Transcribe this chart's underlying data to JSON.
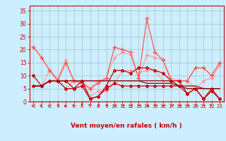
{
  "x": [
    0,
    1,
    2,
    3,
    4,
    5,
    6,
    7,
    8,
    9,
    10,
    11,
    12,
    13,
    14,
    15,
    16,
    17,
    18,
    19,
    20,
    21,
    22,
    23
  ],
  "background_color": "#cceeff",
  "grid_color": "#aacccc",
  "series": [
    {
      "name": "rafales_light1",
      "color": "#ff9999",
      "lw": 0.8,
      "marker": "D",
      "ms": 1.8,
      "y": [
        21,
        17,
        12,
        9,
        16,
        8,
        8,
        5,
        8,
        9,
        17,
        19,
        18,
        9,
        18,
        17,
        16,
        9,
        8,
        8,
        13,
        13,
        10,
        15
      ]
    },
    {
      "name": "moyen_light1",
      "color": "#ff9999",
      "lw": 0.8,
      "marker": "D",
      "ms": 1.8,
      "y": [
        6,
        6,
        12,
        8,
        5,
        8,
        8,
        2,
        4,
        4,
        7,
        12,
        12,
        11,
        12,
        12,
        8,
        8,
        8,
        8,
        5,
        8,
        9,
        14
      ]
    },
    {
      "name": "rafales_pink",
      "color": "#ff5555",
      "lw": 0.9,
      "marker": "+",
      "ms": 4,
      "y": [
        21,
        17,
        12,
        8,
        15,
        8,
        7,
        5,
        7,
        9,
        21,
        20,
        19,
        9,
        32,
        19,
        16,
        8,
        8,
        8,
        13,
        13,
        10,
        15
      ]
    },
    {
      "name": "vent_moyen_dark1",
      "color": "#cc0000",
      "lw": 0.9,
      "marker": "D",
      "ms": 2.0,
      "y": [
        10,
        6,
        8,
        8,
        8,
        5,
        8,
        1,
        2,
        6,
        12,
        12,
        11,
        13,
        13,
        12,
        11,
        8,
        8,
        3,
        5,
        1,
        4,
        1
      ]
    },
    {
      "name": "vent_moyen_dark2",
      "color": "#cc0000",
      "lw": 0.9,
      "marker": "D",
      "ms": 2.0,
      "y": [
        6,
        6,
        8,
        8,
        5,
        5,
        6,
        1,
        2,
        5,
        7,
        6,
        6,
        6,
        6,
        6,
        6,
        6,
        6,
        3,
        5,
        1,
        5,
        1
      ]
    },
    {
      "name": "vent_moyen_flat1",
      "color": "#990000",
      "lw": 0.9,
      "marker": null,
      "ms": 0,
      "y": [
        6,
        6,
        8,
        8,
        8,
        8,
        8,
        8,
        8,
        8,
        8,
        8,
        8,
        8,
        8,
        8,
        8,
        8,
        6,
        6,
        6,
        5,
        5,
        5
      ]
    },
    {
      "name": "vent_moyen_flat2",
      "color": "#990000",
      "lw": 0.9,
      "marker": null,
      "ms": 0,
      "y": [
        6,
        6,
        8,
        8,
        8,
        8,
        8,
        8,
        8,
        8,
        8,
        8,
        8,
        8,
        7,
        7,
        7,
        7,
        6,
        5,
        5,
        5,
        5,
        5
      ]
    }
  ],
  "xlabel": "Vent moyen/en rafales ( km/h )",
  "xlim": [
    -0.5,
    23.5
  ],
  "ylim": [
    0,
    37
  ],
  "yticks": [
    0,
    5,
    10,
    15,
    20,
    25,
    30,
    35
  ],
  "xticks": [
    0,
    1,
    2,
    3,
    4,
    5,
    6,
    7,
    8,
    9,
    10,
    11,
    12,
    13,
    14,
    15,
    16,
    17,
    18,
    19,
    20,
    21,
    22,
    23
  ],
  "axis_color": "#cc0000",
  "tick_color": "#cc0000",
  "xlabel_color": "#cc0000",
  "arrow_color": "#cc0000"
}
